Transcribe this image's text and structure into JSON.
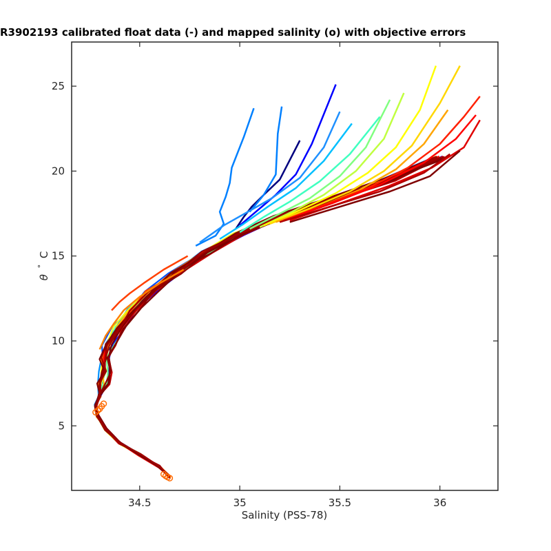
{
  "chart_data": {
    "type": "line",
    "title": "R3902193 calibrated float data (-) and mapped salinity (o) with objective errors",
    "xlabel": "Salinity (PSS-78)",
    "ylabel_symbol": "θ",
    "ylabel_unit": "C",
    "xlim": [
      34.16,
      36.29
    ],
    "ylim": [
      1.2,
      27.6
    ],
    "xticks": [
      34.5,
      35,
      35.5,
      36
    ],
    "xtick_labels": [
      "34.5",
      "35",
      "35.5",
      "36"
    ],
    "yticks": [
      5,
      10,
      15,
      20,
      25
    ],
    "ytick_labels": [
      "5",
      "10",
      "15",
      "20",
      "25"
    ],
    "grid": false,
    "legend": "none",
    "colormap": "jet",
    "mean_profile": {
      "salinity": [
        34.65,
        34.6,
        34.5,
        34.4,
        34.33,
        34.29,
        34.28,
        34.3,
        34.32,
        34.33,
        34.33,
        34.35,
        34.4,
        34.47,
        34.56,
        34.68,
        34.83,
        35.0,
        35.2,
        35.45,
        35.75,
        36.0
      ],
      "theta": [
        2.0,
        2.6,
        3.3,
        4.0,
        4.8,
        5.6,
        6.2,
        6.8,
        7.5,
        8.2,
        9.0,
        9.8,
        10.8,
        11.8,
        12.9,
        14.0,
        15.2,
        16.3,
        17.3,
        18.3,
        19.5,
        20.8
      ]
    },
    "float_profiles": [
      {
        "color": "#00007f",
        "salinity": [
          34.98,
          35.02,
          35.06,
          35.12,
          35.2,
          35.3
        ],
        "theta": [
          16.6,
          17.3,
          17.9,
          18.6,
          19.5,
          21.8
        ]
      },
      {
        "color": "#0000ff",
        "salinity": [
          35.0,
          35.08,
          35.18,
          35.28,
          35.36,
          35.48
        ],
        "theta": [
          16.8,
          17.6,
          18.6,
          19.8,
          21.6,
          25.1
        ]
      },
      {
        "color": "#0080ff",
        "salinity": [
          34.78,
          34.88,
          34.92,
          34.9,
          34.93,
          34.95,
          34.96,
          35.02,
          35.07
        ],
        "theta": [
          15.6,
          16.2,
          16.9,
          17.6,
          18.5,
          19.3,
          20.2,
          22.0,
          23.7
        ]
      },
      {
        "color": "#0080ff",
        "salinity": [
          35.05,
          35.12,
          35.18,
          35.19,
          35.21
        ],
        "theta": [
          17.6,
          18.6,
          19.8,
          22.2,
          23.8
        ]
      },
      {
        "color": "#1e90ff",
        "salinity": [
          34.8,
          34.92,
          35.04,
          35.16,
          35.3,
          35.42,
          35.5
        ],
        "theta": [
          15.8,
          16.8,
          17.6,
          18.4,
          19.6,
          21.4,
          23.5
        ]
      },
      {
        "color": "#00bfff",
        "salinity": [
          34.9,
          35.02,
          35.14,
          35.28,
          35.42,
          35.56
        ],
        "theta": [
          16.0,
          16.9,
          17.9,
          19.0,
          20.6,
          22.8
        ]
      },
      {
        "color": "#40ffc0",
        "salinity": [
          35.0,
          35.12,
          35.25,
          35.4,
          35.55,
          35.7
        ],
        "theta": [
          16.4,
          17.3,
          18.2,
          19.4,
          21.0,
          23.2
        ]
      },
      {
        "color": "#80ff80",
        "salinity": [
          35.05,
          35.2,
          35.35,
          35.5,
          35.63,
          35.75
        ],
        "theta": [
          16.6,
          17.5,
          18.4,
          19.7,
          21.4,
          24.2
        ]
      },
      {
        "color": "#c0ff40",
        "salinity": [
          35.1,
          35.26,
          35.42,
          35.58,
          35.72,
          35.82
        ],
        "theta": [
          16.7,
          17.6,
          18.6,
          20.0,
          21.9,
          24.6
        ]
      },
      {
        "color": "#ffff00",
        "salinity": [
          35.12,
          35.3,
          35.48,
          35.64,
          35.78,
          35.9,
          35.98
        ],
        "theta": [
          16.8,
          17.7,
          18.7,
          19.9,
          21.4,
          23.6,
          26.2
        ]
      },
      {
        "color": "#ffd700",
        "salinity": [
          35.15,
          35.35,
          35.55,
          35.72,
          35.86,
          36.0,
          36.1
        ],
        "theta": [
          16.9,
          17.8,
          18.8,
          20.0,
          21.5,
          24.0,
          26.2
        ]
      },
      {
        "color": "#ffa500",
        "salinity": [
          35.18,
          35.4,
          35.6,
          35.78,
          35.92,
          36.04
        ],
        "theta": [
          17.0,
          17.9,
          18.9,
          20.1,
          21.6,
          23.6
        ]
      },
      {
        "color": "#ff8000",
        "salinity": [
          34.3,
          34.33,
          34.37,
          34.42,
          34.5,
          34.6,
          34.72
        ],
        "theta": [
          9.5,
          10.3,
          11.0,
          11.8,
          12.6,
          13.4,
          14.2
        ]
      },
      {
        "color": "#ff4000",
        "salinity": [
          34.36,
          34.4,
          34.45,
          34.52,
          34.62,
          34.74
        ],
        "theta": [
          11.8,
          12.3,
          12.8,
          13.4,
          14.2,
          15.0
        ]
      },
      {
        "color": "#ff2000",
        "salinity": [
          35.2,
          35.42,
          35.64,
          35.84,
          36.0,
          36.12,
          36.2
        ],
        "theta": [
          17.0,
          18.0,
          19.0,
          20.2,
          21.6,
          23.2,
          24.4
        ]
      },
      {
        "color": "#ff0000",
        "salinity": [
          35.22,
          35.46,
          35.7,
          35.92,
          36.08,
          36.18
        ],
        "theta": [
          17.1,
          18.1,
          19.2,
          20.5,
          21.9,
          23.3
        ]
      },
      {
        "color": "#e00000",
        "salinity": [
          35.25,
          35.5,
          35.74,
          35.96,
          36.12,
          36.2
        ],
        "theta": [
          17.1,
          18.1,
          19.1,
          20.2,
          21.4,
          23.0
        ]
      },
      {
        "color": "#b00000",
        "salinity": [
          35.2,
          35.45,
          35.7,
          35.92,
          36.05
        ],
        "theta": [
          17.0,
          17.9,
          18.8,
          19.9,
          21.0
        ]
      },
      {
        "color": "#7f0000",
        "salinity": [
          35.25,
          35.5,
          35.75,
          35.95,
          36.1
        ],
        "theta": [
          17.0,
          17.9,
          18.8,
          19.7,
          21.2
        ]
      }
    ],
    "mapped_salinity": {
      "color": "#ff6a00",
      "salinity": [
        34.28,
        34.29,
        34.3,
        34.31,
        34.32,
        34.62,
        34.63,
        34.64,
        34.65
      ],
      "theta": [
        5.8,
        5.9,
        6.0,
        6.15,
        6.3,
        2.15,
        2.05,
        1.98,
        1.92
      ]
    }
  }
}
